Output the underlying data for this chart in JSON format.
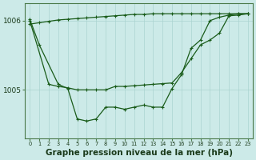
{
  "background_color": "#cceae8",
  "grid_color": "#aad4d0",
  "line_color": "#1a5c1a",
  "title": "Graphe pression niveau de la mer (hPa)",
  "xlabel_fontsize": 7.5,
  "ylabel_left_ticks": [
    1005,
    1006
  ],
  "x_ticks": [
    0,
    1,
    2,
    3,
    4,
    5,
    6,
    7,
    8,
    9,
    10,
    11,
    12,
    13,
    14,
    15,
    16,
    17,
    18,
    19,
    20,
    21,
    22,
    23
  ],
  "series1_x": [
    0,
    1,
    2,
    3,
    4,
    5,
    6,
    7,
    8,
    9,
    10,
    11,
    12,
    13,
    14,
    15,
    16,
    17,
    18,
    19,
    20,
    21,
    22,
    23
  ],
  "series1_y": [
    1005.95,
    1005.97,
    1005.99,
    1006.01,
    1006.02,
    1006.03,
    1006.04,
    1006.05,
    1006.06,
    1006.07,
    1006.08,
    1006.09,
    1006.09,
    1006.1,
    1006.1,
    1006.1,
    1006.1,
    1006.1,
    1006.1,
    1006.1,
    1006.1,
    1006.1,
    1006.1,
    1006.1
  ],
  "series2_x": [
    0,
    2,
    3,
    4,
    5,
    6,
    7,
    8,
    9,
    10,
    11,
    12,
    13,
    14,
    15,
    16,
    17,
    18,
    19,
    20,
    21,
    22,
    23
  ],
  "series2_y": [
    1006.0,
    1005.08,
    1005.05,
    1005.03,
    1005.0,
    1005.0,
    1005.0,
    1005.0,
    1005.05,
    1005.05,
    1005.06,
    1005.07,
    1005.08,
    1005.09,
    1005.1,
    1005.25,
    1005.45,
    1005.65,
    1005.72,
    1005.82,
    1006.07,
    1006.08,
    1006.1
  ],
  "series3_x": [
    0,
    1,
    3,
    4,
    5,
    6,
    7,
    8,
    9,
    10,
    11,
    12,
    13,
    14,
    15,
    16,
    17,
    18,
    19,
    20,
    21,
    22,
    23
  ],
  "series3_y": [
    1006.02,
    1005.65,
    1005.08,
    1005.02,
    1004.58,
    1004.55,
    1004.58,
    1004.75,
    1004.75,
    1004.72,
    1004.75,
    1004.78,
    1004.75,
    1004.75,
    1005.02,
    1005.22,
    1005.6,
    1005.72,
    1006.0,
    1006.05,
    1006.08,
    1006.1,
    1006.1
  ],
  "ylim": [
    1004.3,
    1006.25
  ],
  "xlim": [
    -0.5,
    23.5
  ]
}
